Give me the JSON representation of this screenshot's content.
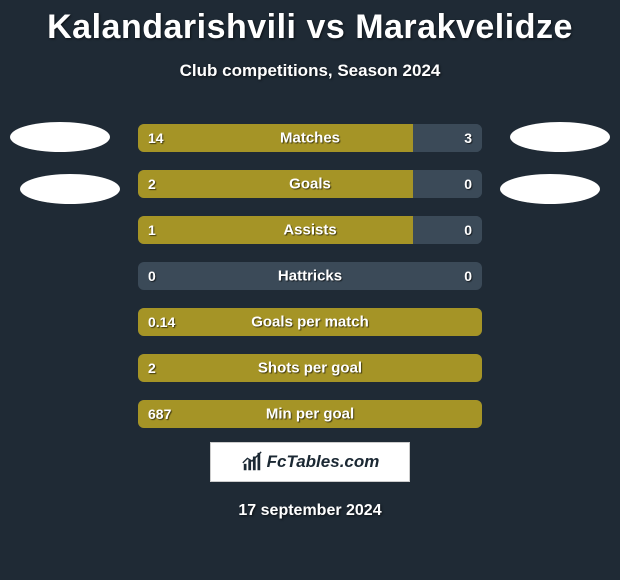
{
  "title": "Kalandarishvili vs Marakvelidze",
  "subtitle": "Club competitions, Season 2024",
  "date": "17 september 2024",
  "logo_text": "FcTables.com",
  "colors": {
    "background": "#1f2a35",
    "bar_left": "#a59426",
    "bar_right": "#3b4a58",
    "text": "#ffffff",
    "logo_bg": "#ffffff",
    "logo_text": "#1b2833",
    "ellipse": "#ffffff"
  },
  "stats": [
    {
      "label": "Matches",
      "left_val": "14",
      "right_val": "3",
      "left_pct": 80,
      "right_pct": 20
    },
    {
      "label": "Goals",
      "left_val": "2",
      "right_val": "0",
      "left_pct": 80,
      "right_pct": 20
    },
    {
      "label": "Assists",
      "left_val": "1",
      "right_val": "0",
      "left_pct": 80,
      "right_pct": 20
    },
    {
      "label": "Hattricks",
      "left_val": "0",
      "right_val": "0",
      "left_pct": 0,
      "right_pct": 0
    },
    {
      "label": "Goals per match",
      "left_val": "0.14",
      "right_val": "",
      "left_pct": 100,
      "right_pct": 0
    },
    {
      "label": "Shots per goal",
      "left_val": "2",
      "right_val": "",
      "left_pct": 100,
      "right_pct": 0
    },
    {
      "label": "Min per goal",
      "left_val": "687",
      "right_val": "",
      "left_pct": 100,
      "right_pct": 0
    }
  ]
}
